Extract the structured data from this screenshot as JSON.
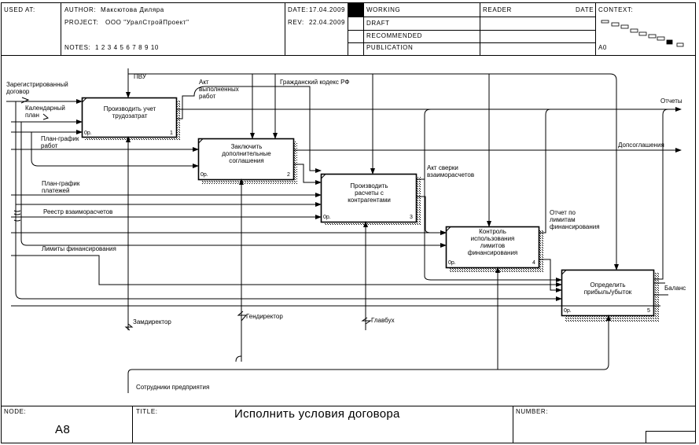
{
  "header": {
    "used_at_label": "USED AT:",
    "author_label": "AUTHOR:",
    "author": "Максютова Диляра",
    "project_label": "PROJECT:",
    "project": "ООО \"УралСтройПроект\"",
    "date_label": "DATE:",
    "date": "17.04.2009",
    "rev_label": "REV:",
    "rev": "22.04.2009",
    "notes_label": "NOTES:",
    "notes": "1  2  3  4  5  6  7  8  9  10",
    "status": [
      "WORKING",
      "DRAFT",
      "RECOMMENDED",
      "PUBLICATION"
    ],
    "reader_label": "READER",
    "reader_date_label": "DATE",
    "context_label": "CONTEXT:",
    "context_node": "A0"
  },
  "footer": {
    "node_label": "NODE:",
    "node": "A8",
    "title_label": "TITLE:",
    "title": "Исполнить условия договора",
    "number_label": "NUMBER:"
  },
  "activities": [
    {
      "id": 1,
      "text": "Производить учет\nтрудозатрат",
      "cost": "0р.",
      "num": "1"
    },
    {
      "id": 2,
      "text": "Заключить\nдополнительные\nсоглашения",
      "cost": "0р.",
      "num": "2"
    },
    {
      "id": 3,
      "text": "Производить\nрасчеты с\nконтрагентами",
      "cost": "0р.",
      "num": "3"
    },
    {
      "id": 4,
      "text": "Контроль\nиспользования\nлимитов\nфинансирования",
      "cost": "0р.",
      "num": "4"
    },
    {
      "id": 5,
      "text": "Определить\nприбыль/убыток",
      "cost": "0р.",
      "num": "5"
    }
  ],
  "arrow_labels": {
    "registered_contract": "Зарегистрированный\nдоговор",
    "calendar_plan": "Календарный\nплан",
    "work_plan": "План-график\nработ",
    "payment_plan": "План-график\nплатежей",
    "settlement_register": "Реестр взаиморасчетов",
    "finance_limits": "Лимиты финансирования",
    "pvu": "ПВУ",
    "work_act": "Акт\nвыполненных\nработ",
    "civil_code": "Гражданский кодекс РФ",
    "reports": "Отчеты",
    "supplementary": "Допсоглашения",
    "reconciliation_act": "Акт сверки\nвзаиморасчетов",
    "limits_report": "Отчет по\nлимитам\nфинансирования",
    "balance": "Баланс",
    "deputy_director": "Замдиректор",
    "general_director": "Гендиректор",
    "chief_accountant": "Главбух",
    "employees": "Сотрудники предприятия"
  }
}
